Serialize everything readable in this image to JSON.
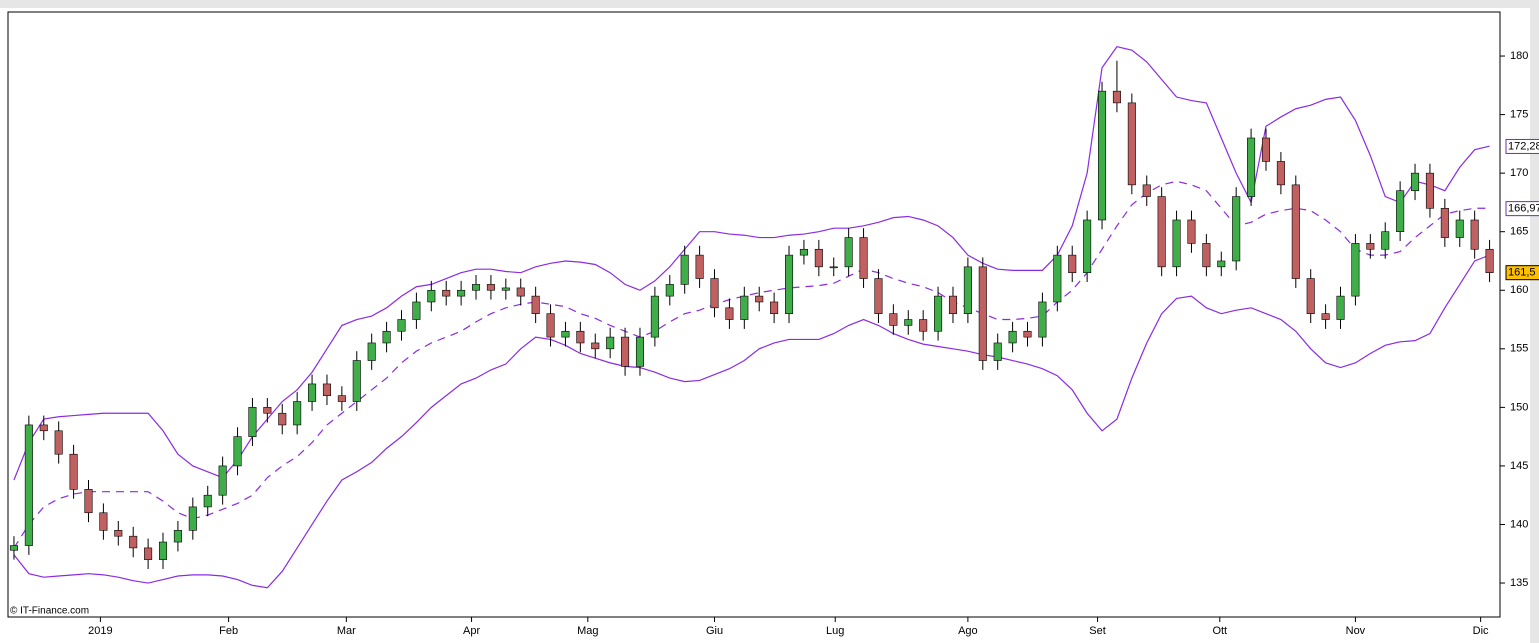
{
  "chart_data": {
    "type": "candlestick",
    "credit": "© IT-Finance.com",
    "up_color": "#3fae49",
    "down_color": "#c06060",
    "band_color": "#8a2be2",
    "xlim": [
      -0.4,
      99.7
    ],
    "xticks": [
      {
        "value": 5.8,
        "label": "2019"
      },
      {
        "value": 14.4,
        "label": "Feb"
      },
      {
        "value": 22.3,
        "label": "Mar"
      },
      {
        "value": 30.7,
        "label": "Apr"
      },
      {
        "value": 38.5,
        "label": "Mag"
      },
      {
        "value": 47,
        "label": "Giu"
      },
      {
        "value": 55.1,
        "label": "Lug"
      },
      {
        "value": 64,
        "label": "Ago"
      },
      {
        "value": 72.7,
        "label": "Set"
      },
      {
        "value": 80.9,
        "label": "Ott"
      },
      {
        "value": 90,
        "label": "Nov"
      },
      {
        "value": 98.4,
        "label": "Dic"
      }
    ],
    "ylim": [
      132.1,
      183.76
    ],
    "yticks": [
      135,
      140,
      145,
      150,
      155,
      160,
      165,
      170,
      175,
      180
    ],
    "open": [
      137.8,
      138.2,
      148.5,
      148,
      146,
      143,
      141,
      139.5,
      139,
      138,
      137,
      138.5,
      139.5,
      141.5,
      142.5,
      145,
      147.5,
      150,
      149.5,
      148.5,
      150.5,
      152,
      151,
      150.5,
      154,
      155.5,
      156.5,
      157.5,
      159,
      160,
      159.5,
      160,
      160.5,
      160,
      160.2,
      159.5,
      158,
      156,
      156.5,
      155.5,
      155,
      156,
      153.5,
      156,
      159.5,
      160.5,
      163,
      161,
      158.5,
      157.5,
      159.5,
      159,
      158,
      163,
      163.5,
      162,
      162,
      164.5,
      161,
      158,
      157,
      157.5,
      156.5,
      159.5,
      158,
      162,
      154,
      155.5,
      156.5,
      156,
      159,
      163,
      161.5,
      166,
      177,
      176,
      169,
      168,
      162,
      166,
      164,
      162,
      162.5,
      168,
      173,
      171,
      169,
      161,
      158,
      157.5,
      159.5,
      164,
      163.5,
      165,
      168.5,
      170,
      167,
      164.5,
      166,
      163.5
    ],
    "high": [
      139,
      149.3,
      149.3,
      148.8,
      146.8,
      143.8,
      141.8,
      140.3,
      139.8,
      138.8,
      139.3,
      140.3,
      142.3,
      143.3,
      145.8,
      148.3,
      150.8,
      150.8,
      150.3,
      151.3,
      152.8,
      152.8,
      151.8,
      154.8,
      156.3,
      157.3,
      158.3,
      159.8,
      160.8,
      160.8,
      160.8,
      161.3,
      161.3,
      161,
      161,
      160.3,
      158.8,
      157.3,
      157.3,
      156.3,
      156.8,
      156.8,
      156.8,
      160.3,
      161.3,
      163.8,
      163.8,
      161.8,
      159.3,
      160.3,
      160.3,
      159.8,
      163.8,
      164.3,
      164.3,
      162.8,
      165.3,
      165.3,
      161.8,
      158.8,
      158.3,
      158.3,
      160.3,
      160.3,
      162.8,
      162.8,
      156.3,
      157.3,
      157.3,
      159.8,
      163.8,
      163.8,
      166.8,
      177.8,
      179.6,
      176.8,
      169.8,
      168.8,
      166.8,
      166.8,
      164.8,
      163.3,
      168.8,
      173.8,
      173.8,
      171.8,
      169.8,
      161.8,
      158.8,
      160.3,
      164.8,
      164.8,
      165.8,
      169.3,
      170.8,
      170.8,
      167.8,
      166.8,
      166.8,
      164.3
    ],
    "low": [
      137,
      137.4,
      147.2,
      145.2,
      142.2,
      140.2,
      138.7,
      138.2,
      137.2,
      136.2,
      136.2,
      137.7,
      138.7,
      140.7,
      141.7,
      144.2,
      146.7,
      148.7,
      147.7,
      147.7,
      149.7,
      150.2,
      149.7,
      149.7,
      153.2,
      154.7,
      155.7,
      156.7,
      158.2,
      158.7,
      158.7,
      159.2,
      159.2,
      159.2,
      158.7,
      157.2,
      155.2,
      155.2,
      154.7,
      154.2,
      154.2,
      152.7,
      152.7,
      155.2,
      158.7,
      159.7,
      160.2,
      157.7,
      156.7,
      156.7,
      158.2,
      157.2,
      157.2,
      162.2,
      161.2,
      161.2,
      161.2,
      160.2,
      157.2,
      156.2,
      156.2,
      155.7,
      155.7,
      157.2,
      157.2,
      153.2,
      153.2,
      154.7,
      155.2,
      155.2,
      158.2,
      160.7,
      160.7,
      165.2,
      175.2,
      168.2,
      167.2,
      161.2,
      161.2,
      163.2,
      161.2,
      161.2,
      161.7,
      167.2,
      170.2,
      168.2,
      160.2,
      157.2,
      156.7,
      156.7,
      158.7,
      162.7,
      162.7,
      164.2,
      167.7,
      166.2,
      163.7,
      163.7,
      162.7,
      160.7
    ],
    "close": [
      138.2,
      148.5,
      148,
      146,
      143,
      141,
      139.5,
      139,
      138,
      137,
      138.5,
      139.5,
      141.5,
      142.5,
      145,
      147.5,
      150,
      149.5,
      148.5,
      150.5,
      152,
      151,
      150.5,
      154,
      155.5,
      156.5,
      157.5,
      159,
      160,
      159.5,
      160,
      160.5,
      160,
      160.2,
      159.5,
      158,
      156,
      156.5,
      155.5,
      155,
      156,
      153.5,
      156,
      159.5,
      160.5,
      163,
      161,
      158.5,
      157.5,
      159.5,
      159,
      158,
      163,
      163.5,
      162,
      162,
      164.5,
      161,
      158,
      157,
      157.5,
      156.5,
      159.5,
      158,
      162,
      154,
      155.5,
      156.5,
      156,
      159,
      163,
      161.5,
      166,
      177,
      176,
      169,
      168,
      162,
      166,
      164,
      162,
      162.5,
      168,
      173,
      171,
      169,
      161,
      158,
      157.5,
      159.5,
      164,
      163.5,
      165,
      168.5,
      170,
      167,
      164.5,
      166,
      163.5,
      161.5
    ],
    "series": [
      {
        "dash": false,
        "values": [
          143.8,
          147,
          149,
          149.2,
          149.3,
          149.4,
          149.5,
          149.5,
          149.5,
          149.5,
          148,
          146,
          145,
          144.5,
          144,
          145.5,
          147.5,
          149,
          150.5,
          151.5,
          153,
          155,
          157,
          157.5,
          157.8,
          158.5,
          159.5,
          160.3,
          160.5,
          161,
          161.5,
          161.8,
          161.8,
          161.6,
          161.5,
          162,
          162.3,
          162.5,
          162.4,
          162.2,
          161.5,
          160.5,
          160,
          160.8,
          162,
          163.5,
          165,
          165,
          164.8,
          164.7,
          164.5,
          164.5,
          164.7,
          164.8,
          165,
          165.3,
          165.3,
          165.5,
          165.8,
          166.2,
          166.3,
          166,
          165.5,
          164.5,
          163,
          162.3,
          161.8,
          161.7,
          161.7,
          161.7,
          163,
          165.5,
          170,
          179,
          180.8,
          180.5,
          179.5,
          178,
          176.5,
          176.2,
          176,
          173,
          170,
          167.5,
          174,
          174.8,
          175.5,
          175.8,
          176.3,
          176.5,
          174.5,
          171.5,
          168,
          167.5,
          169.3,
          169,
          168.5,
          170.5,
          172,
          172.3
        ]
      },
      {
        "dash": true,
        "values": [
          138,
          140,
          141.5,
          142.2,
          142.6,
          142.8,
          142.8,
          142.8,
          142.8,
          142.8,
          142,
          141,
          140.5,
          140.8,
          141.3,
          141.8,
          142.5,
          144,
          145,
          145.8,
          147,
          148.5,
          149.5,
          150.5,
          151.5,
          152.5,
          153.8,
          154.8,
          155.5,
          156,
          156.5,
          157.3,
          158,
          158.5,
          158.8,
          159,
          158.8,
          158.6,
          158,
          157.6,
          157,
          156.5,
          156,
          156.5,
          157.3,
          158,
          158.3,
          158.8,
          159.2,
          159.5,
          159.8,
          160,
          160.2,
          160.3,
          160.4,
          160.6,
          161.2,
          161.8,
          161.5,
          161,
          160.6,
          160.3,
          159.8,
          159,
          158.5,
          158,
          157.5,
          157.5,
          157.6,
          157.8,
          159,
          160,
          161.5,
          163.5,
          165.5,
          167.3,
          168.3,
          169,
          169.3,
          169,
          168.5,
          167,
          165.5,
          165.8,
          166.5,
          166.8,
          167,
          166.8,
          166,
          165,
          163.5,
          163,
          163,
          163.3,
          164.5,
          165.5,
          166.5,
          166.8,
          167,
          167
        ]
      },
      {
        "dash": false,
        "values": [
          137.4,
          135.8,
          135.5,
          135.6,
          135.7,
          135.8,
          135.7,
          135.5,
          135.2,
          135,
          135.3,
          135.6,
          135.7,
          135.7,
          135.6,
          135.3,
          134.8,
          134.6,
          136,
          138,
          140,
          142,
          143.8,
          144.5,
          145.3,
          146.5,
          147.5,
          148.7,
          150,
          151,
          152,
          152.5,
          153.2,
          153.7,
          155,
          156,
          155.8,
          155.3,
          154.6,
          154.2,
          153.8,
          153.5,
          153.4,
          153,
          152.5,
          152.2,
          152.3,
          152.8,
          153.3,
          154,
          155,
          155.5,
          155.8,
          155.8,
          155.8,
          156.3,
          157,
          157.5,
          157,
          156.3,
          155.8,
          155.4,
          155.2,
          155,
          154.8,
          154.5,
          154.3,
          154,
          153.7,
          153.3,
          152.7,
          151.5,
          149.5,
          148,
          149,
          152.5,
          155.5,
          158,
          159.3,
          159.5,
          158.5,
          158,
          158.3,
          158.5,
          158,
          157.5,
          156.5,
          155,
          153.8,
          153.4,
          153.8,
          154.6,
          155.3,
          155.6,
          155.7,
          156.3,
          158.5,
          160.5,
          162.5,
          163
        ]
      }
    ],
    "last_labels": [
      {
        "value": 172.28,
        "label": "172,28",
        "color": "#7030a0",
        "fill": "#ffffff"
      },
      {
        "value": 166.97,
        "label": "166,97",
        "color": "#7030a0",
        "fill": "#ffffff"
      },
      {
        "value": 161.5,
        "label": "161,5",
        "color": "#000000",
        "fill": "#ffc000"
      }
    ]
  }
}
